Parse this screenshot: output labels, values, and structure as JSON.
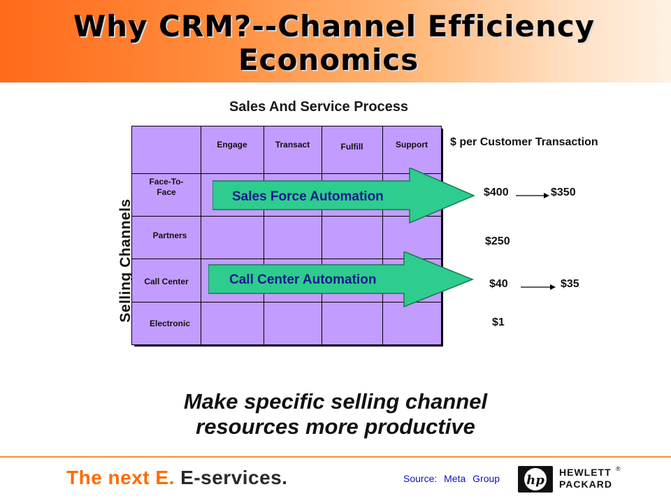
{
  "slide": {
    "title_line1": "Why CRM?--Channel Efficiency",
    "title_line2": "Economics",
    "section_title": "Sales And Service Process",
    "y_axis_label": "Selling Channels",
    "columns": [
      "Engage",
      "Transact",
      "Fulfill",
      "Support"
    ],
    "rows": [
      "Face-To-Face",
      "Partners",
      "Call Center",
      "Electronic"
    ],
    "arrows": [
      {
        "label": "Sales Force Automation",
        "color": "#2ecc8e"
      },
      {
        "label": "Call Center Automation",
        "color": "#2ecc8e"
      }
    ],
    "cost_header": "$ per Customer Transaction",
    "costs": {
      "face_to_face": {
        "from": "$400",
        "to": "$350"
      },
      "partners": "$250",
      "call_center": {
        "from": "$40",
        "to": "$35"
      },
      "electronic": "$1"
    },
    "tagline_line1": "Make specific selling channel",
    "tagline_line2": "resources more productive"
  },
  "footer": {
    "brand_prefix": "The next E.",
    "brand_suffix": "E-services.",
    "source": "Source: Meta Group",
    "logo_mark": "hp",
    "logo_line1": "HEWLETT",
    "logo_line2": "PACKARD",
    "registered": "®"
  },
  "colors": {
    "header_orange": "#ff6a1a",
    "grid_fill": "#c39cff",
    "arrow_fill": "#2ecc8e",
    "arrow_text": "#1a1a8e",
    "brand_orange": "#ff6a00",
    "source_blue": "#1010c0"
  }
}
